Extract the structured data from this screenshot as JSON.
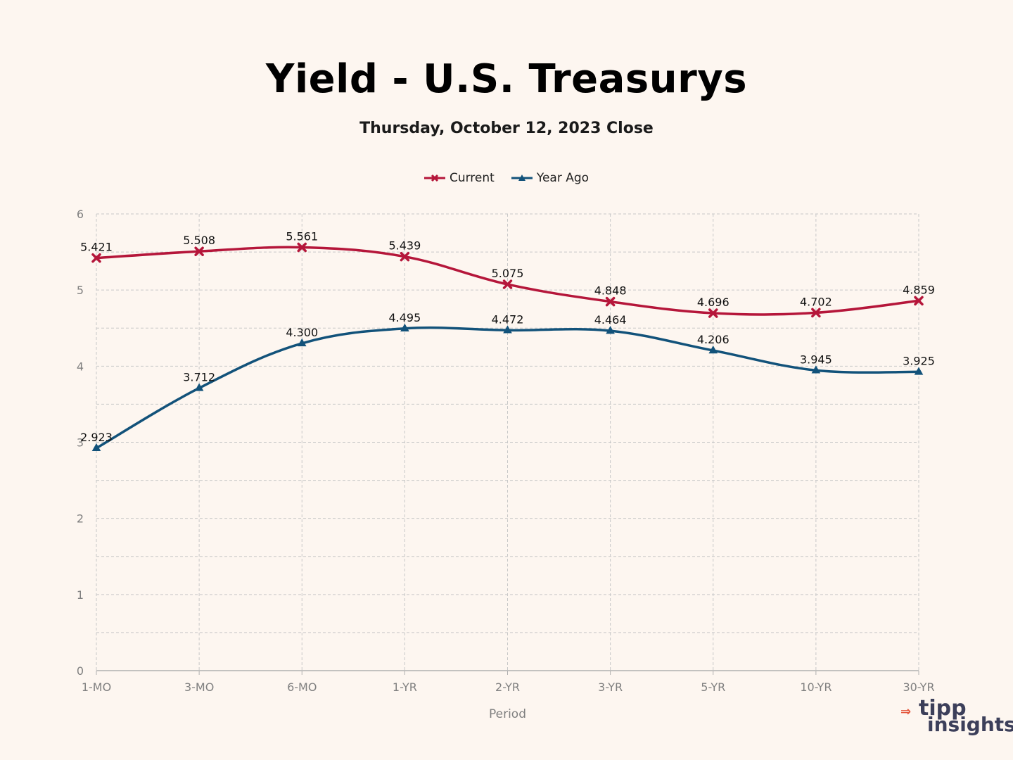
{
  "chart_data": {
    "type": "line",
    "title": "Yield - U.S. Treasurys",
    "subtitle": "Thursday, October 12, 2023 Close",
    "xlabel": "Period",
    "ylabel": "",
    "categories": [
      "1-MO",
      "3-MO",
      "6-MO",
      "1-YR",
      "2-YR",
      "3-YR",
      "5-YR",
      "10-YR",
      "30-YR"
    ],
    "ylim": [
      0,
      6
    ],
    "yticks": [
      "0",
      "1",
      "2",
      "3",
      "4",
      "5",
      "6"
    ],
    "grid": true,
    "legend_position": "top-center",
    "series": [
      {
        "name": "Current",
        "color": "#b5163a",
        "marker": "x",
        "values": [
          5.421,
          5.508,
          5.561,
          5.439,
          5.075,
          4.848,
          4.696,
          4.702,
          4.859
        ],
        "labels": [
          "5.421",
          "5.508",
          "5.561",
          "5.439",
          "5.075",
          "4.848",
          "4.696",
          "4.702",
          "4.859"
        ]
      },
      {
        "name": "Year Ago",
        "color": "#12527a",
        "marker": "triangle",
        "values": [
          2.923,
          3.712,
          4.3,
          4.495,
          4.472,
          4.464,
          4.206,
          3.945,
          3.925
        ],
        "labels": [
          "2.923",
          "3.712",
          "4.300",
          "4.495",
          "4.472",
          "4.464",
          "4.206",
          "3.945",
          "3.925"
        ]
      }
    ]
  },
  "branding": {
    "logo_line1": "tipp",
    "logo_line2": "insights",
    "logo_mark": "⇒"
  }
}
